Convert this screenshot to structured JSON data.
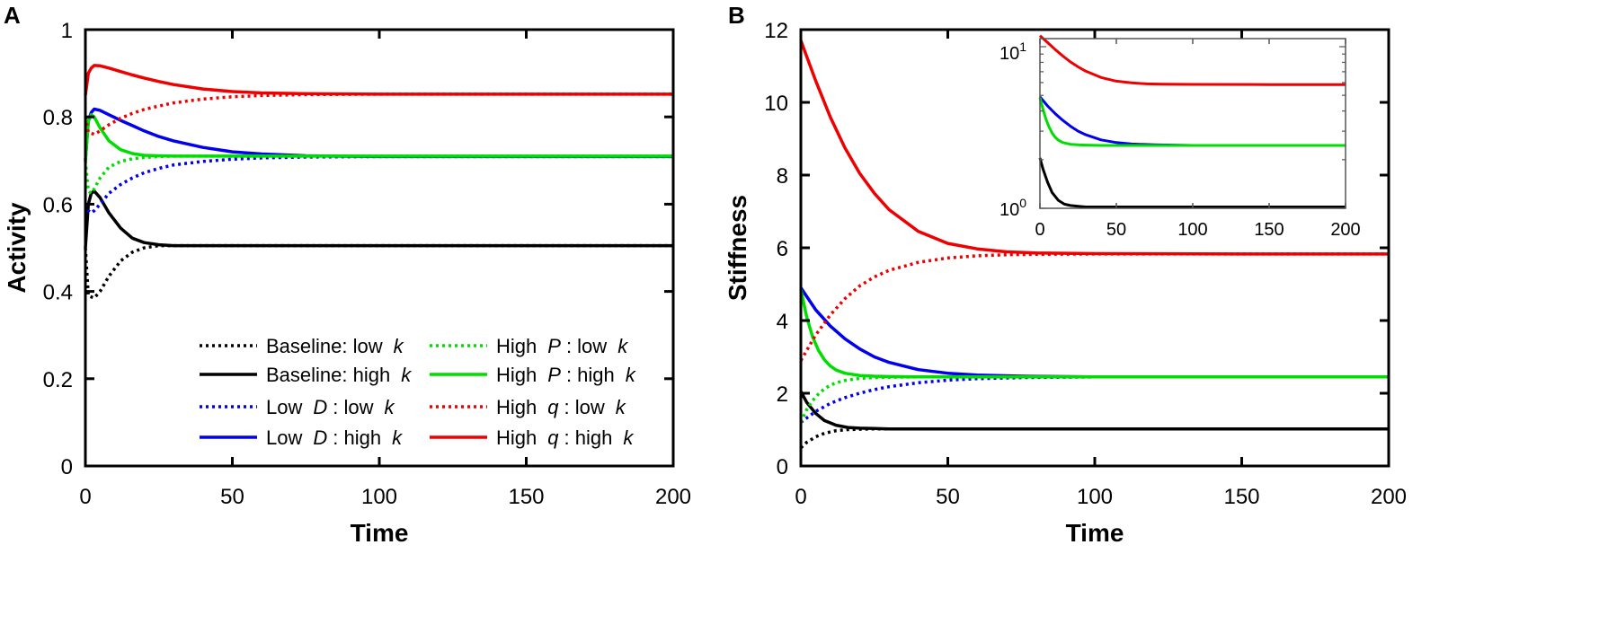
{
  "chart_data": [
    {
      "type": "line",
      "panel_label": "A",
      "xlabel": "Time",
      "ylabel": "Activity",
      "xlim": [
        0,
        200
      ],
      "ylim": [
        0,
        1
      ],
      "x_ticks": [
        0,
        50,
        100,
        150,
        200
      ],
      "x_tick_labels": [
        "0",
        "50",
        "100",
        "150",
        "200"
      ],
      "y_ticks": [
        0,
        0.2,
        0.4,
        0.6,
        0.8,
        1
      ],
      "y_tick_labels": [
        "0",
        "0.2",
        "0.4",
        "0.6",
        "0.8",
        "1"
      ],
      "grid": false,
      "legend_position": "bottom-right",
      "series": [
        {
          "id": "baseline_low",
          "color": "#000000",
          "dash": "dotted",
          "x": [
            0,
            1,
            3,
            5,
            8,
            12,
            16,
            20,
            25,
            30,
            40,
            50,
            75,
            100,
            150,
            200
          ],
          "y": [
            0.5,
            0.39,
            0.385,
            0.4,
            0.435,
            0.47,
            0.49,
            0.5,
            0.505,
            0.505,
            0.505,
            0.505,
            0.505,
            0.505,
            0.505,
            0.505
          ]
        },
        {
          "id": "baseline_high",
          "color": "#000000",
          "dash": "solid",
          "x": [
            0,
            1,
            2,
            3,
            5,
            8,
            12,
            16,
            20,
            25,
            30,
            40,
            50,
            100,
            150,
            200
          ],
          "y": [
            0.5,
            0.6,
            0.625,
            0.63,
            0.615,
            0.58,
            0.545,
            0.522,
            0.512,
            0.507,
            0.505,
            0.505,
            0.505,
            0.505,
            0.505,
            0.505
          ]
        },
        {
          "id": "lowD_low",
          "color": "#0000ee",
          "dash": "dotted",
          "x": [
            0,
            1,
            2,
            3,
            5,
            8,
            12,
            16,
            20,
            25,
            30,
            40,
            50,
            60,
            75,
            100,
            150,
            200
          ],
          "y": [
            0.6,
            0.585,
            0.58,
            0.585,
            0.6,
            0.625,
            0.645,
            0.66,
            0.672,
            0.682,
            0.69,
            0.698,
            0.703,
            0.706,
            0.708,
            0.709,
            0.709,
            0.709
          ]
        },
        {
          "id": "lowD_high",
          "color": "#0000ee",
          "dash": "solid",
          "x": [
            0,
            1,
            2,
            3,
            5,
            8,
            12,
            16,
            20,
            25,
            30,
            40,
            50,
            60,
            75,
            100,
            150,
            200
          ],
          "y": [
            0.7,
            0.79,
            0.81,
            0.818,
            0.815,
            0.805,
            0.792,
            0.78,
            0.768,
            0.755,
            0.745,
            0.73,
            0.72,
            0.715,
            0.711,
            0.709,
            0.709,
            0.709
          ]
        },
        {
          "id": "highP_low",
          "color": "#00dd00",
          "dash": "dotted",
          "x": [
            0,
            1,
            2,
            3,
            5,
            8,
            12,
            16,
            20,
            25,
            30,
            40,
            50,
            100,
            150,
            200
          ],
          "y": [
            0.7,
            0.63,
            0.625,
            0.635,
            0.66,
            0.685,
            0.698,
            0.704,
            0.707,
            0.709,
            0.71,
            0.71,
            0.71,
            0.71,
            0.71,
            0.71
          ]
        },
        {
          "id": "highP_high",
          "color": "#00dd00",
          "dash": "solid",
          "x": [
            0,
            1,
            2,
            3,
            5,
            8,
            12,
            16,
            20,
            25,
            30,
            40,
            50,
            100,
            150,
            200
          ],
          "y": [
            0.7,
            0.79,
            0.805,
            0.8,
            0.775,
            0.745,
            0.725,
            0.716,
            0.712,
            0.711,
            0.71,
            0.71,
            0.71,
            0.71,
            0.71,
            0.71
          ]
        },
        {
          "id": "highq_low",
          "color": "#ee0000",
          "dash": "dotted",
          "x": [
            0,
            1,
            3,
            5,
            8,
            12,
            16,
            20,
            25,
            30,
            40,
            50,
            60,
            75,
            100,
            150,
            200
          ],
          "y": [
            0.8,
            0.765,
            0.76,
            0.768,
            0.782,
            0.797,
            0.808,
            0.817,
            0.825,
            0.832,
            0.841,
            0.846,
            0.849,
            0.851,
            0.852,
            0.852,
            0.852
          ]
        },
        {
          "id": "highq_high",
          "color": "#ee0000",
          "dash": "solid",
          "x": [
            0,
            1,
            2,
            3,
            5,
            8,
            12,
            16,
            20,
            25,
            30,
            40,
            50,
            60,
            75,
            100,
            150,
            200
          ],
          "y": [
            0.85,
            0.9,
            0.912,
            0.918,
            0.917,
            0.912,
            0.904,
            0.896,
            0.889,
            0.881,
            0.874,
            0.864,
            0.858,
            0.855,
            0.853,
            0.852,
            0.852,
            0.852
          ]
        }
      ],
      "legend": [
        {
          "series": "baseline_low",
          "text": "Baseline: low",
          "italic": "k"
        },
        {
          "series": "baseline_high",
          "text": "Baseline: high",
          "italic": "k"
        },
        {
          "series": "lowD_low",
          "pre": "Low",
          "mid": "D",
          "text": ": low",
          "italic": "k"
        },
        {
          "series": "lowD_high",
          "pre": "Low",
          "mid": "D",
          "text": ": high",
          "italic": "k"
        },
        {
          "series": "highP_low",
          "pre": "High",
          "mid": "P",
          "text": ": low",
          "italic": "k"
        },
        {
          "series": "highP_high",
          "pre": "High",
          "mid": "P",
          "text": ": high",
          "italic": "k"
        },
        {
          "series": "highq_low",
          "pre": "High",
          "mid": "q",
          "text": ": low",
          "italic": "k"
        },
        {
          "series": "highq_high",
          "pre": "High",
          "mid": "q",
          "text": ": high",
          "italic": "k"
        }
      ]
    },
    {
      "type": "line",
      "panel_label": "B",
      "xlabel": "Time",
      "ylabel": "Stiffness",
      "xlim": [
        0,
        200
      ],
      "ylim": [
        0,
        12
      ],
      "x_ticks": [
        0,
        50,
        100,
        150,
        200
      ],
      "x_tick_labels": [
        "0",
        "50",
        "100",
        "150",
        "200"
      ],
      "y_ticks": [
        0,
        2,
        4,
        6,
        8,
        10,
        12
      ],
      "y_tick_labels": [
        "0",
        "2",
        "4",
        "6",
        "8",
        "10",
        "12"
      ],
      "grid": false,
      "series": [
        {
          "id": "baseline_low",
          "color": "#000000",
          "dash": "dotted",
          "x": [
            0,
            2,
            5,
            8,
            12,
            16,
            20,
            25,
            30,
            40,
            50,
            100,
            150,
            200
          ],
          "y": [
            0.5,
            0.65,
            0.8,
            0.9,
            0.97,
            1.0,
            1.01,
            1.02,
            1.02,
            1.02,
            1.02,
            1.02,
            1.02,
            1.02
          ]
        },
        {
          "series_note": "solid",
          "id": "baseline_high",
          "color": "#000000",
          "dash": "solid",
          "x": [
            0,
            2,
            5,
            8,
            12,
            16,
            20,
            25,
            30,
            40,
            50,
            100,
            150,
            200
          ],
          "y": [
            2.05,
            1.75,
            1.45,
            1.25,
            1.12,
            1.06,
            1.04,
            1.03,
            1.02,
            1.02,
            1.02,
            1.02,
            1.02,
            1.02
          ]
        },
        {
          "id": "lowD_low",
          "color": "#0000ee",
          "dash": "dotted",
          "x": [
            0,
            5,
            10,
            15,
            20,
            25,
            30,
            40,
            50,
            60,
            75,
            100,
            150,
            200
          ],
          "y": [
            1.2,
            1.5,
            1.72,
            1.88,
            2.0,
            2.1,
            2.18,
            2.29,
            2.36,
            2.4,
            2.43,
            2.45,
            2.45,
            2.45
          ]
        },
        {
          "id": "lowD_high",
          "color": "#0000ee",
          "dash": "solid",
          "x": [
            0,
            5,
            10,
            15,
            20,
            25,
            30,
            40,
            50,
            60,
            75,
            100,
            150,
            200
          ],
          "y": [
            4.9,
            4.3,
            3.85,
            3.5,
            3.22,
            3.0,
            2.85,
            2.65,
            2.55,
            2.5,
            2.47,
            2.45,
            2.45,
            2.45
          ]
        },
        {
          "id": "highP_low",
          "color": "#00dd00",
          "dash": "dotted",
          "x": [
            0,
            2,
            4,
            6,
            8,
            10,
            12,
            15,
            20,
            25,
            30,
            40,
            50,
            100,
            150,
            200
          ],
          "y": [
            1.2,
            1.55,
            1.8,
            1.98,
            2.12,
            2.22,
            2.29,
            2.35,
            2.41,
            2.43,
            2.44,
            2.45,
            2.45,
            2.45,
            2.45,
            2.45
          ]
        },
        {
          "id": "highP_high",
          "color": "#00dd00",
          "dash": "solid",
          "x": [
            0,
            2,
            4,
            6,
            8,
            10,
            12,
            15,
            20,
            25,
            30,
            40,
            50,
            100,
            150,
            200
          ],
          "y": [
            4.85,
            4.1,
            3.55,
            3.18,
            2.92,
            2.75,
            2.64,
            2.55,
            2.49,
            2.47,
            2.46,
            2.45,
            2.45,
            2.45,
            2.45,
            2.45
          ]
        },
        {
          "id": "highq_low",
          "color": "#ee0000",
          "dash": "dotted",
          "x": [
            0,
            5,
            10,
            15,
            20,
            25,
            30,
            40,
            50,
            60,
            70,
            80,
            100,
            150,
            200
          ],
          "y": [
            2.9,
            3.6,
            4.15,
            4.6,
            4.95,
            5.2,
            5.38,
            5.6,
            5.72,
            5.78,
            5.81,
            5.82,
            5.83,
            5.83,
            5.83
          ]
        },
        {
          "id": "highq_high",
          "color": "#ee0000",
          "dash": "solid",
          "x": [
            0,
            5,
            10,
            15,
            20,
            25,
            30,
            40,
            50,
            60,
            70,
            80,
            100,
            150,
            200
          ],
          "y": [
            11.7,
            10.6,
            9.6,
            8.75,
            8.05,
            7.5,
            7.05,
            6.45,
            6.12,
            5.97,
            5.89,
            5.86,
            5.84,
            5.83,
            5.83
          ]
        }
      ],
      "inset": {
        "type": "line",
        "scale": "log",
        "xlim": [
          0,
          200
        ],
        "ylim_exp": [
          0,
          1.05
        ],
        "x_ticks": [
          0,
          50,
          100,
          150,
          200
        ],
        "x_tick_labels": [
          "0",
          "50",
          "100",
          "150",
          "200"
        ],
        "y_tick_labels": [
          {
            "base": "10",
            "exp": "1",
            "value": 10
          },
          {
            "base": "10",
            "exp": "0",
            "value": 1
          }
        ],
        "series": [
          {
            "id": "baseline_high",
            "color": "#000000",
            "dash": "solid",
            "x": [
              0,
              2,
              5,
              8,
              12,
              16,
              20,
              25,
              30,
              50,
              100,
              150,
              200
            ],
            "y": [
              2.05,
              1.75,
              1.45,
              1.25,
              1.12,
              1.06,
              1.04,
              1.03,
              1.02,
              1.02,
              1.02,
              1.02,
              1.02
            ]
          },
          {
            "id": "lowD_high",
            "color": "#0000ee",
            "dash": "solid",
            "x": [
              0,
              5,
              10,
              15,
              20,
              25,
              30,
              40,
              50,
              60,
              75,
              100,
              150,
              200
            ],
            "y": [
              4.9,
              4.3,
              3.85,
              3.5,
              3.22,
              3.0,
              2.85,
              2.65,
              2.55,
              2.5,
              2.47,
              2.45,
              2.45,
              2.45
            ]
          },
          {
            "id": "highP_high",
            "color": "#00dd00",
            "dash": "solid",
            "x": [
              0,
              2,
              4,
              6,
              8,
              10,
              12,
              15,
              20,
              25,
              30,
              40,
              50,
              100,
              150,
              200
            ],
            "y": [
              4.85,
              4.1,
              3.55,
              3.18,
              2.92,
              2.75,
              2.64,
              2.55,
              2.49,
              2.47,
              2.46,
              2.45,
              2.45,
              2.45,
              2.45,
              2.45
            ]
          },
          {
            "id": "highq_high",
            "color": "#ee0000",
            "dash": "solid",
            "x": [
              0,
              5,
              10,
              15,
              20,
              25,
              30,
              40,
              50,
              60,
              70,
              80,
              100,
              150,
              200
            ],
            "y": [
              11.7,
              10.6,
              9.6,
              8.75,
              8.05,
              7.5,
              7.05,
              6.45,
              6.12,
              5.97,
              5.89,
              5.86,
              5.84,
              5.83,
              5.83
            ]
          }
        ]
      }
    }
  ]
}
